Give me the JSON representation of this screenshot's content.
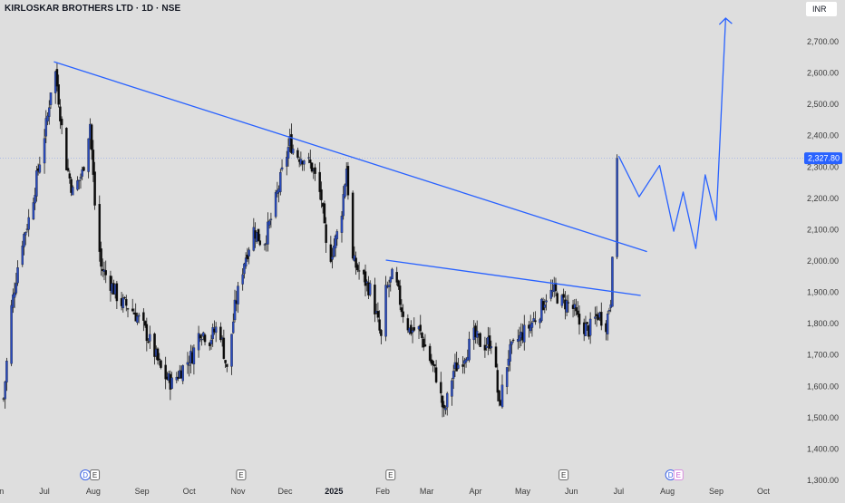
{
  "header": {
    "title": "KIRLOSKAR BROTHERS LTD · 1D · NSE",
    "currency": "INR"
  },
  "colors": {
    "background": "#dedede",
    "candle_up": "#2a4bbd",
    "candle_down": "#0a0a0a",
    "drawing_line": "#2962ff",
    "price_label_bg": "#2962ff",
    "axis_text": "#3a3a3a"
  },
  "chart_data": {
    "type": "candlestick",
    "symbol": "KIRLOSKAR BROTHERS LTD",
    "interval": "1D",
    "exchange": "NSE",
    "current_price": 2327.8,
    "current_price_label": "2,327.80",
    "y_ticks": [
      1300,
      1400,
      1500,
      1600,
      1700,
      1800,
      1900,
      2000,
      2100,
      2200,
      2300,
      2400,
      2500,
      2600,
      2700
    ],
    "y_tick_labels": [
      "1,300.00",
      "1,400.00",
      "1,500.00",
      "1,600.00",
      "1,700.00",
      "1,800.00",
      "1,900.00",
      "2,000.00",
      "2,100.00",
      "2,200.00",
      "2,300.00",
      "2,400.00",
      "2,500.00",
      "2,600.00",
      "2,700.00"
    ],
    "ylim": [
      1290,
      2800
    ],
    "x_labels": [
      "Jun",
      "Jul",
      "Aug",
      "Sep",
      "Oct",
      "Nov",
      "Dec",
      "2025",
      "Feb",
      "Mar",
      "Apr",
      "May",
      "Jun",
      "Jul",
      "Aug",
      "Sep",
      "Oct"
    ],
    "x_label_dates": [
      "2024-06-01",
      "2024-07-01",
      "2024-08-01",
      "2024-09-01",
      "2024-10-01",
      "2024-11-01",
      "2024-12-01",
      "2025-01-01",
      "2025-02-01",
      "2025-03-01",
      "2025-04-01",
      "2025-05-01",
      "2025-06-01",
      "2025-07-01",
      "2025-08-01",
      "2025-09-01",
      "2025-10-01"
    ],
    "price_path": [
      [
        "2024-06-05",
        1560
      ],
      [
        "2024-06-10",
        1850
      ],
      [
        "2024-06-16",
        2050
      ],
      [
        "2024-06-22",
        2150
      ],
      [
        "2024-06-28",
        2320
      ],
      [
        "2024-07-03",
        2460
      ],
      [
        "2024-07-07",
        2640
      ],
      [
        "2024-07-10",
        2520
      ],
      [
        "2024-07-14",
        2330
      ],
      [
        "2024-07-19",
        2220
      ],
      [
        "2024-07-25",
        2280
      ],
      [
        "2024-07-30",
        2440
      ],
      [
        "2024-08-02",
        2180
      ],
      [
        "2024-08-06",
        1980
      ],
      [
        "2024-08-12",
        1930
      ],
      [
        "2024-08-18",
        1870
      ],
      [
        "2024-08-25",
        1850
      ],
      [
        "2024-09-01",
        1800
      ],
      [
        "2024-09-08",
        1720
      ],
      [
        "2024-09-14",
        1640
      ],
      [
        "2024-09-20",
        1610
      ],
      [
        "2024-09-27",
        1660
      ],
      [
        "2024-10-03",
        1700
      ],
      [
        "2024-10-08",
        1780
      ],
      [
        "2024-10-14",
        1750
      ],
      [
        "2024-10-20",
        1800
      ],
      [
        "2024-10-25",
        1650
      ],
      [
        "2024-10-30",
        1850
      ],
      [
        "2024-11-05",
        2000
      ],
      [
        "2024-11-11",
        2100
      ],
      [
        "2024-11-17",
        2050
      ],
      [
        "2024-11-23",
        2150
      ],
      [
        "2024-11-29",
        2280
      ],
      [
        "2024-12-04",
        2380
      ],
      [
        "2024-12-08",
        2340
      ],
      [
        "2024-12-13",
        2330
      ],
      [
        "2024-12-18",
        2300
      ],
      [
        "2024-12-24",
        2200
      ],
      [
        "2024-12-28",
        1990
      ],
      [
        "2025-01-01",
        2050
      ],
      [
        "2025-01-05",
        2120
      ],
      [
        "2025-01-09",
        2300
      ],
      [
        "2025-01-13",
        2000
      ],
      [
        "2025-01-19",
        1950
      ],
      [
        "2025-01-25",
        1900
      ],
      [
        "2025-01-31",
        1750
      ],
      [
        "2025-02-03",
        1900
      ],
      [
        "2025-02-08",
        1960
      ],
      [
        "2025-02-13",
        1850
      ],
      [
        "2025-02-18",
        1780
      ],
      [
        "2025-02-24",
        1780
      ],
      [
        "2025-03-02",
        1700
      ],
      [
        "2025-03-08",
        1620
      ],
      [
        "2025-03-12",
        1510
      ],
      [
        "2025-03-18",
        1650
      ],
      [
        "2025-03-24",
        1690
      ],
      [
        "2025-03-31",
        1760
      ],
      [
        "2025-04-06",
        1730
      ],
      [
        "2025-04-12",
        1750
      ],
      [
        "2025-04-16",
        1530
      ],
      [
        "2025-04-22",
        1700
      ],
      [
        "2025-04-28",
        1750
      ],
      [
        "2025-05-05",
        1790
      ],
      [
        "2025-05-12",
        1840
      ],
      [
        "2025-05-16",
        1890
      ],
      [
        "2025-05-21",
        1900
      ],
      [
        "2025-05-26",
        1870
      ],
      [
        "2025-06-01",
        1860
      ],
      [
        "2025-06-06",
        1800
      ],
      [
        "2025-06-12",
        1780
      ],
      [
        "2025-06-18",
        1830
      ],
      [
        "2025-06-23",
        1800
      ],
      [
        "2025-06-26",
        1880
      ],
      [
        "2025-06-28",
        2200
      ],
      [
        "2025-06-30",
        2327.8
      ]
    ],
    "trendlines": [
      {
        "from": [
          "2024-07-07",
          2636
        ],
        "to": [
          "2025-07-19",
          2030
        ]
      },
      {
        "from": [
          "2025-02-03",
          2003
        ],
        "to": [
          "2025-07-15",
          1890
        ]
      }
    ],
    "projection_path": [
      [
        "2025-07-01",
        2335
      ],
      [
        "2025-07-14",
        2205
      ],
      [
        "2025-07-27",
        2305
      ],
      [
        "2025-08-05",
        2095
      ],
      [
        "2025-08-11",
        2220
      ],
      [
        "2025-08-19",
        2040
      ],
      [
        "2025-08-25",
        2275
      ],
      [
        "2025-09-01",
        2130
      ],
      [
        "2025-09-07",
        2775
      ]
    ],
    "event_markers": [
      {
        "date": "2024-07-27",
        "letter": "D",
        "kind": "dividend"
      },
      {
        "date": "2024-08-02",
        "letter": "E",
        "kind": "earnings"
      },
      {
        "date": "2024-11-03",
        "letter": "E",
        "kind": "earnings"
      },
      {
        "date": "2025-02-06",
        "letter": "E",
        "kind": "earnings"
      },
      {
        "date": "2025-05-27",
        "letter": "E",
        "kind": "earnings"
      },
      {
        "date": "2025-08-03",
        "letter": "D",
        "kind": "dividend"
      },
      {
        "date": "2025-08-08",
        "letter": "E",
        "kind": "earnings"
      }
    ]
  }
}
